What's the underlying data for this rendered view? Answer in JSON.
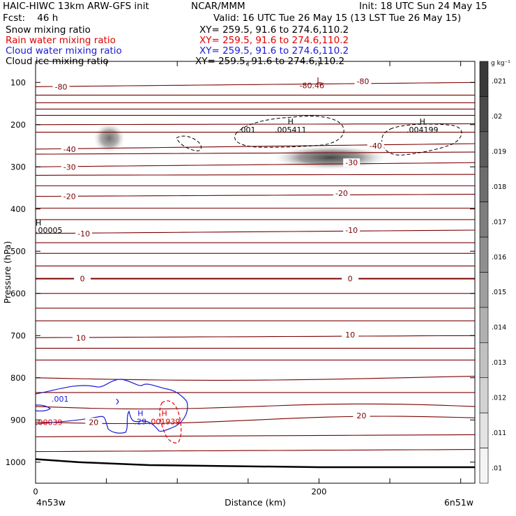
{
  "header": {
    "title_left": "HAIC-HIWC 13km ARW-GFS init",
    "center_name": "NCAR/MMM",
    "init": "Init: 18 UTC Sun 24 May 15",
    "fcst": "Fcst:    46 h",
    "valid": "Valid: 16 UTC Tue 26 May 15 (13 LST Tue 26 May 15)",
    "fields": [
      {
        "name": "Snow mixing ratio",
        "xy": "XY= 259.5, 91.6 to 274.6,110.2",
        "color": "#000000"
      },
      {
        "name": "Rain water mixing ratio",
        "xy": "XY= 259.5, 91.6 to 274.6,110.2",
        "color": "#e00000"
      },
      {
        "name": "Cloud water mixing ratio",
        "xy": "XY= 259.5, 91.6 to 274.6,110.2",
        "color": "#1a1ad6"
      },
      {
        "name": "Cloud ice mixing ratio",
        "xy": "XY= 259.5, 91.6 to 274.6,110.2",
        "color": "#000000"
      }
    ]
  },
  "chart_data": {
    "type": "cross-section",
    "xlabel": "Distance (km)",
    "ylabel": "Pressure (hPa)",
    "x_ticks": [
      0,
      200
    ],
    "x_minor_ticks": [
      0,
      50,
      100,
      150,
      200,
      250,
      300
    ],
    "xlim": [
      0,
      310
    ],
    "y_ticks": [
      100,
      200,
      300,
      400,
      500,
      600,
      700,
      800,
      900,
      1000
    ],
    "ylim": [
      50,
      1050
    ],
    "x_endpoint_labels": [
      "4n53w",
      "6n51w"
    ],
    "temperature_isotherms": {
      "color": "#7a0000",
      "bold_value": 0,
      "lines": [
        {
          "label": "-80",
          "p_left": 110,
          "p_right": 100
        },
        {
          "p_left": 130,
          "p_right": 130
        },
        {
          "p_left": 148,
          "p_right": 148
        },
        {
          "p_left": 163,
          "p_right": 163
        },
        {
          "p_left": 178,
          "p_right": 178
        },
        {
          "p_left": 200,
          "p_right": 198
        },
        {
          "p_left": 218,
          "p_right": 218
        },
        {
          "label": "-40",
          "p_left": 258,
          "p_right": 245
        },
        {
          "p_left": 270,
          "p_right": 265
        },
        {
          "label": "-30",
          "p_left": 300,
          "p_right": 290
        },
        {
          "p_left": 320,
          "p_right": 318
        },
        {
          "p_left": 345,
          "p_right": 345
        },
        {
          "label": "-20",
          "p_left": 370,
          "p_right": 365
        },
        {
          "p_left": 398,
          "p_right": 398
        },
        {
          "p_left": 425,
          "p_right": 425
        },
        {
          "label": "-10",
          "p_left": 458,
          "p_right": 450
        },
        {
          "p_left": 480,
          "p_right": 480
        },
        {
          "p_left": 505,
          "p_right": 505
        },
        {
          "p_left": 535,
          "p_right": 535
        },
        {
          "label": "0",
          "p_left": 565,
          "p_right": 565
        },
        {
          "p_left": 600,
          "p_right": 600
        },
        {
          "p_left": 635,
          "p_right": 635
        },
        {
          "p_left": 665,
          "p_right": 665
        },
        {
          "label": "10",
          "p_left": 705,
          "p_right": 700
        },
        {
          "p_left": 730,
          "p_right": 730
        },
        {
          "p_left": 758,
          "p_right": 758
        },
        {
          "p_left": 800,
          "p_right": 800
        },
        {
          "p_left": 835,
          "p_right": 835
        },
        {
          "p_left": 868,
          "p_right": 868
        },
        {
          "label": "20",
          "p_left": 905,
          "p_right": 895
        },
        {
          "p_left": 940,
          "p_right": 935
        },
        {
          "p_left": 975,
          "p_right": 970
        }
      ],
      "labels": [
        {
          "text": "-80",
          "x": 18,
          "p": 110
        },
        {
          "text": "-80",
          "x": 231,
          "p": 97
        },
        {
          "text": "-40",
          "x": 24,
          "p": 258
        },
        {
          "text": "-40",
          "x": 240,
          "p": 250
        },
        {
          "text": "-30",
          "x": 24,
          "p": 300
        },
        {
          "text": "-30",
          "x": 223,
          "p": 290
        },
        {
          "text": "-20",
          "x": 24,
          "p": 370
        },
        {
          "text": "-20",
          "x": 216,
          "p": 362
        },
        {
          "text": "-10",
          "x": 34,
          "p": 458
        },
        {
          "text": "-10",
          "x": 223,
          "p": 450
        },
        {
          "text": "0",
          "x": 33,
          "p": 565
        },
        {
          "text": "0",
          "x": 222,
          "p": 565
        },
        {
          "text": "10",
          "x": 32,
          "p": 705
        },
        {
          "text": "10",
          "x": 222,
          "p": 698
        },
        {
          "text": "20",
          "x": 41,
          "p": 905
        },
        {
          "text": "20",
          "x": 230,
          "p": 890
        }
      ],
      "low_label": {
        "text": "L",
        "x": 200,
        "p": 95
      },
      "low_value": {
        "text": "-80.46",
        "x": 195,
        "p": 107
      }
    },
    "surface_pressure": [
      {
        "x": 0,
        "p": 993
      },
      {
        "x": 30,
        "p": 1000
      },
      {
        "x": 80,
        "p": 1007
      },
      {
        "x": 200,
        "p": 1012
      },
      {
        "x": 310,
        "p": 1012
      }
    ],
    "snow_shading": [
      {
        "x": 52,
        "p": 232,
        "rx": 11,
        "ry": 35,
        "intensity": 0.75
      },
      {
        "x": 208,
        "p": 278,
        "rx": 40,
        "ry": 28,
        "intensity": 0.95
      }
    ],
    "cloud_ice_contours": {
      "color": "#000000",
      "style": "dashed",
      "contour_label": ".001",
      "maxima": [
        {
          "marker": "H",
          "value": ".005411",
          "x": 180,
          "p": 205
        },
        {
          "marker": "H",
          "value": ".004199",
          "x": 273,
          "p": 205
        }
      ]
    },
    "cloud_water_contours": {
      "color": "#1a1ad6",
      "contour_label": ".001",
      "max": {
        "marker": "H",
        "value": ".29",
        "x": 74,
        "p": 900
      }
    },
    "rain_water_contours": {
      "color": "#e00000",
      "style": "dashed",
      "max": {
        "marker": "H",
        "value": ".001939",
        "x": 82,
        "p": 900
      },
      "left_value": {
        "text": ".00039",
        "x": 0,
        "p": 905
      }
    },
    "misc_labels": [
      {
        "text": "H",
        "x": 0,
        "p": 433
      },
      {
        "text": ".00005",
        "x": 0,
        "p": 450
      }
    ],
    "colorbar": {
      "unit": "g kg⁻¹",
      "labels": [
        ".021",
        ".02",
        ".019",
        ".018",
        ".017",
        ".016",
        ".015",
        ".014",
        ".013",
        ".012",
        ".011",
        ".01"
      ],
      "gray_top": "#3a3a3a",
      "gray_bottom": "#f4f4f4"
    }
  }
}
